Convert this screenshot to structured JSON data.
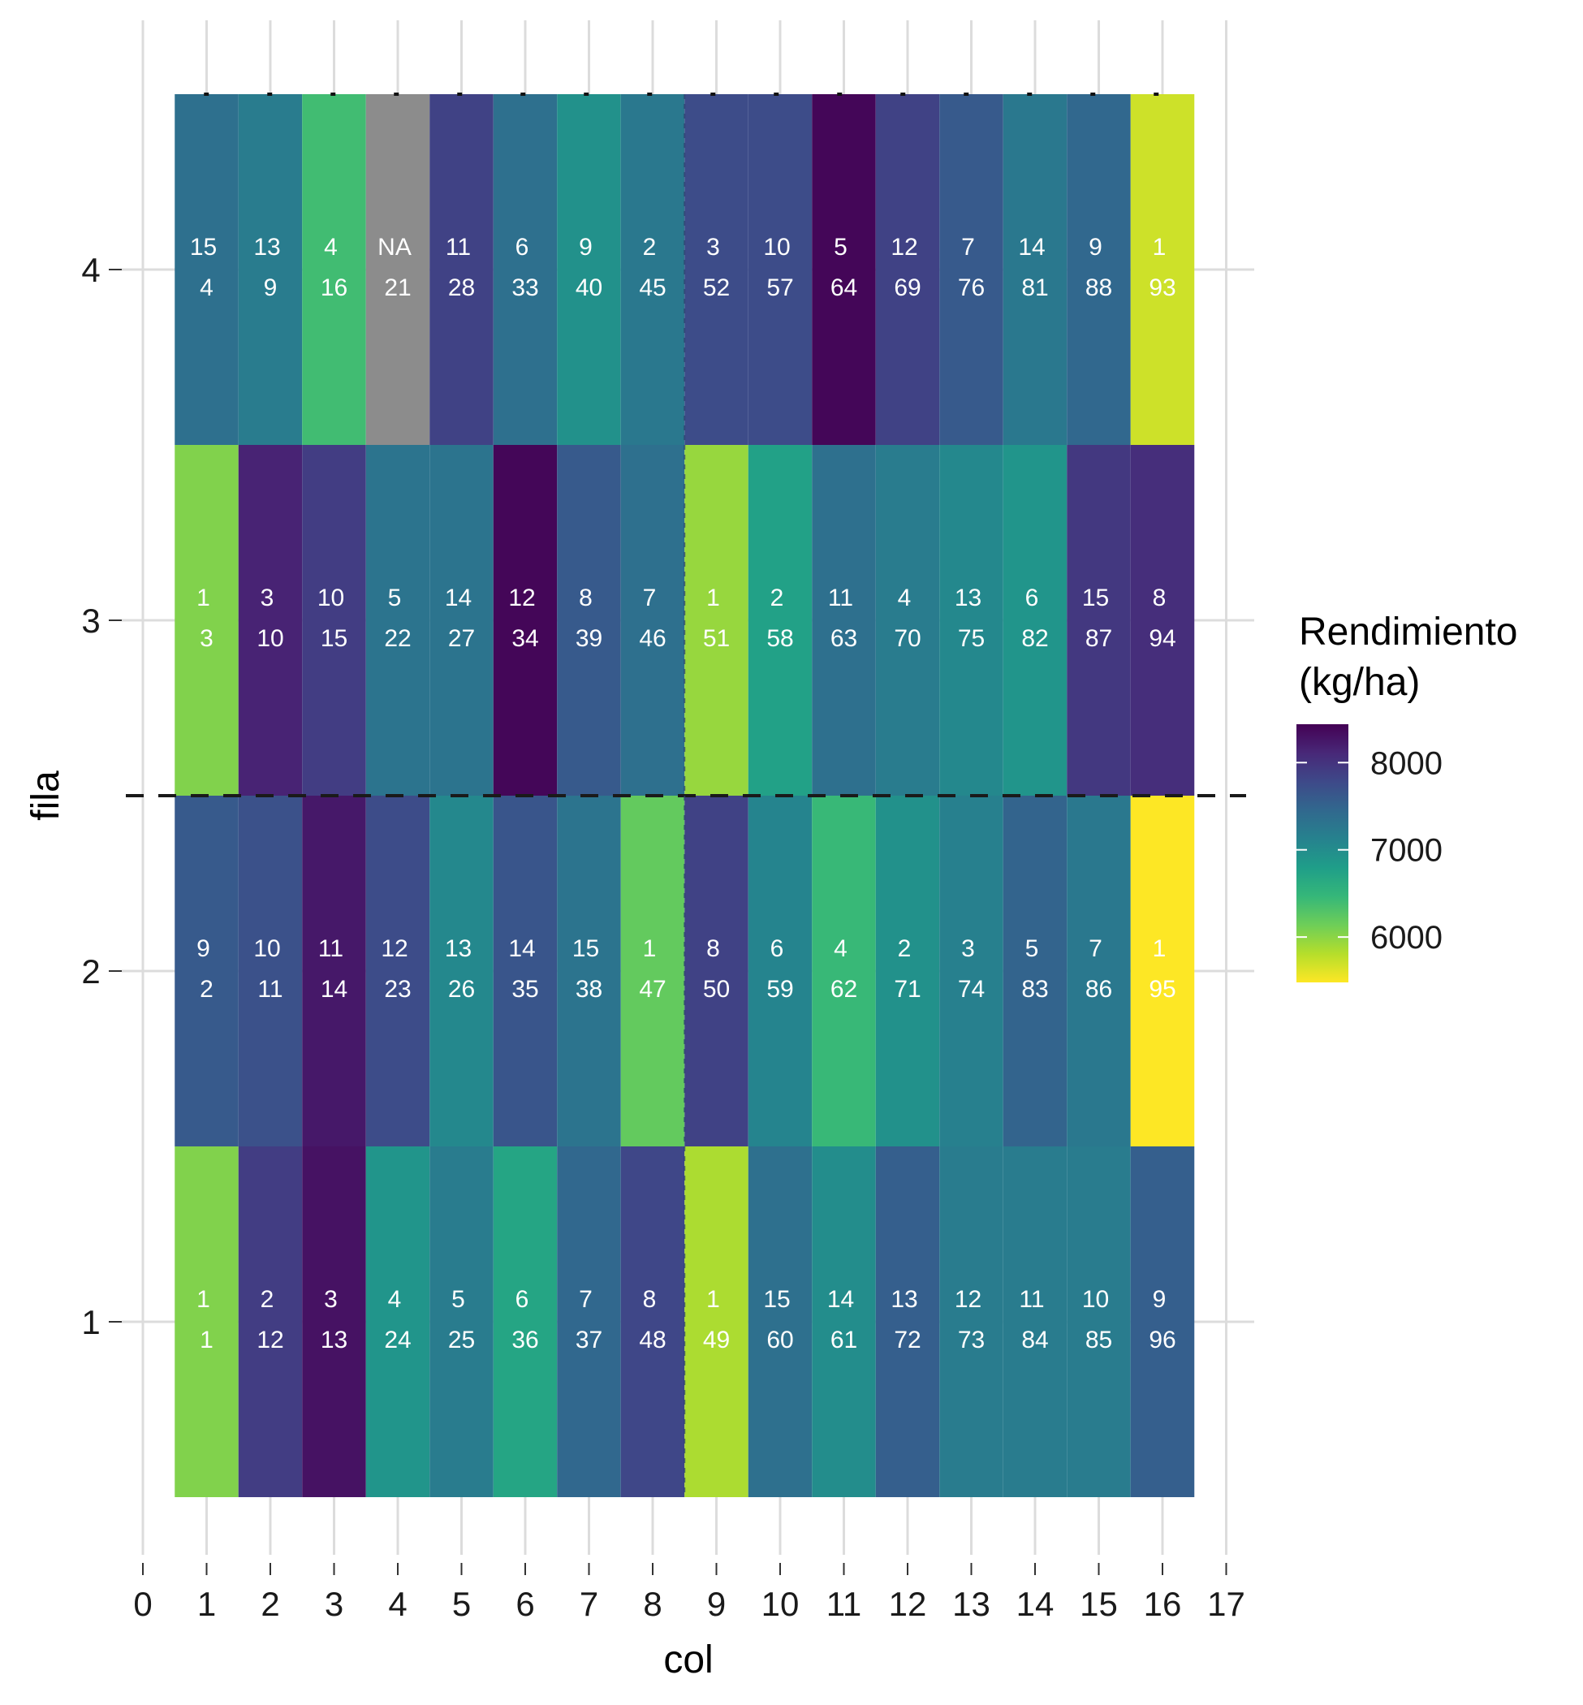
{
  "chart_data": {
    "type": "heatmap",
    "xlabel": "col",
    "ylabel": "fila",
    "x_ticks": [
      "0",
      "1",
      "2",
      "3",
      "4",
      "5",
      "6",
      "7",
      "8",
      "9",
      "10",
      "11",
      "12",
      "13",
      "14",
      "15",
      "16",
      "17"
    ],
    "y_ticks": [
      "1",
      "2",
      "3",
      "4"
    ],
    "xlim": [
      0,
      17
    ],
    "ylim": [
      0.5,
      4.5
    ],
    "grid": true,
    "legend": {
      "title_lines": [
        "Rendimiento",
        "(kg/ha)"
      ],
      "ticks": [
        8000,
        7000,
        6000
      ],
      "range": [
        5480,
        8440
      ],
      "colormap": "viridis (reversed: high = dark purple, low = yellow)",
      "placement": "right"
    },
    "dividers": {
      "horizontal_dashed_at_fila": 2.5,
      "vertical_dashed_at_col": 8.5,
      "top_dashed_at_fila": 4.5
    },
    "na_color": "#8c8c8c",
    "cells": [
      {
        "fila": 1,
        "col": 1,
        "label1": "1",
        "label2": "1",
        "value": 6050
      },
      {
        "fila": 1,
        "col": 2,
        "label1": "2",
        "label2": "12",
        "value": 7900
      },
      {
        "fila": 1,
        "col": 3,
        "label1": "3",
        "label2": "13",
        "value": 8300
      },
      {
        "fila": 1,
        "col": 4,
        "label1": "4",
        "label2": "24",
        "value": 6900
      },
      {
        "fila": 1,
        "col": 5,
        "label1": "5",
        "label2": "25",
        "value": 7200
      },
      {
        "fila": 1,
        "col": 6,
        "label1": "6",
        "label2": "36",
        "value": 6700
      },
      {
        "fila": 1,
        "col": 7,
        "label1": "7",
        "label2": "37",
        "value": 7450
      },
      {
        "fila": 1,
        "col": 8,
        "label1": "8",
        "label2": "48",
        "value": 7800
      },
      {
        "fila": 1,
        "col": 9,
        "label1": "1",
        "label2": "49",
        "value": 5850
      },
      {
        "fila": 1,
        "col": 10,
        "label1": "15",
        "label2": "60",
        "value": 7350
      },
      {
        "fila": 1,
        "col": 11,
        "label1": "14",
        "label2": "61",
        "value": 7000
      },
      {
        "fila": 1,
        "col": 12,
        "label1": "13",
        "label2": "72",
        "value": 7550
      },
      {
        "fila": 1,
        "col": 13,
        "label1": "12",
        "label2": "73",
        "value": 7200
      },
      {
        "fila": 1,
        "col": 14,
        "label1": "11",
        "label2": "84",
        "value": 7200
      },
      {
        "fila": 1,
        "col": 15,
        "label1": "10",
        "label2": "85",
        "value": 7200
      },
      {
        "fila": 1,
        "col": 16,
        "label1": "9",
        "label2": "96",
        "value": 7550
      },
      {
        "fila": 2,
        "col": 1,
        "label1": "9",
        "label2": "2",
        "value": 7600
      },
      {
        "fila": 2,
        "col": 2,
        "label1": "10",
        "label2": "11",
        "value": 7700
      },
      {
        "fila": 2,
        "col": 3,
        "label1": "11",
        "label2": "14",
        "value": 8250
      },
      {
        "fila": 2,
        "col": 4,
        "label1": "12",
        "label2": "23",
        "value": 7750
      },
      {
        "fila": 2,
        "col": 5,
        "label1": "13",
        "label2": "26",
        "value": 7050
      },
      {
        "fila": 2,
        "col": 6,
        "label1": "14",
        "label2": "35",
        "value": 7650
      },
      {
        "fila": 2,
        "col": 7,
        "label1": "15",
        "label2": "38",
        "value": 7300
      },
      {
        "fila": 2,
        "col": 8,
        "label1": "1",
        "label2": "47",
        "value": 6200
      },
      {
        "fila": 2,
        "col": 9,
        "label1": "8",
        "label2": "50",
        "value": 7850
      },
      {
        "fila": 2,
        "col": 10,
        "label1": "6",
        "label2": "59",
        "value": 7100
      },
      {
        "fila": 2,
        "col": 11,
        "label1": "4",
        "label2": "62",
        "value": 6450
      },
      {
        "fila": 2,
        "col": 12,
        "label1": "2",
        "label2": "71",
        "value": 6950
      },
      {
        "fila": 2,
        "col": 13,
        "label1": "3",
        "label2": "74",
        "value": 7150
      },
      {
        "fila": 2,
        "col": 14,
        "label1": "5",
        "label2": "83",
        "value": 7500
      },
      {
        "fila": 2,
        "col": 15,
        "label1": "7",
        "label2": "86",
        "value": 7250
      },
      {
        "fila": 2,
        "col": 16,
        "label1": "1",
        "label2": "95",
        "value": 5480
      },
      {
        "fila": 3,
        "col": 1,
        "label1": "1",
        "label2": "3",
        "value": 6050
      },
      {
        "fila": 3,
        "col": 2,
        "label1": "3",
        "label2": "10",
        "value": 8150
      },
      {
        "fila": 3,
        "col": 3,
        "label1": "10",
        "label2": "15",
        "value": 7900
      },
      {
        "fila": 3,
        "col": 4,
        "label1": "5",
        "label2": "22",
        "value": 7300
      },
      {
        "fila": 3,
        "col": 5,
        "label1": "14",
        "label2": "27",
        "value": 7300
      },
      {
        "fila": 3,
        "col": 6,
        "label1": "12",
        "label2": "34",
        "value": 8400
      },
      {
        "fila": 3,
        "col": 7,
        "label1": "8",
        "label2": "39",
        "value": 7600
      },
      {
        "fila": 3,
        "col": 8,
        "label1": "7",
        "label2": "46",
        "value": 7350
      },
      {
        "fila": 3,
        "col": 9,
        "label1": "1",
        "label2": "51",
        "value": 5950
      },
      {
        "fila": 3,
        "col": 10,
        "label1": "2",
        "label2": "58",
        "value": 6750
      },
      {
        "fila": 3,
        "col": 11,
        "label1": "11",
        "label2": "63",
        "value": 7350
      },
      {
        "fila": 3,
        "col": 12,
        "label1": "4",
        "label2": "70",
        "value": 7200
      },
      {
        "fila": 3,
        "col": 13,
        "label1": "13",
        "label2": "75",
        "value": 7050
      },
      {
        "fila": 3,
        "col": 14,
        "label1": "6",
        "label2": "82",
        "value": 6900
      },
      {
        "fila": 3,
        "col": 15,
        "label1": "15",
        "label2": "87",
        "value": 7950
      },
      {
        "fila": 3,
        "col": 16,
        "label1": "8",
        "label2": "94",
        "value": 8050
      },
      {
        "fila": 4,
        "col": 1,
        "label1": "15",
        "label2": "4",
        "value": 7350
      },
      {
        "fila": 4,
        "col": 2,
        "label1": "13",
        "label2": "9",
        "value": 7200
      },
      {
        "fila": 4,
        "col": 3,
        "label1": "4",
        "label2": "16",
        "value": 6400
      },
      {
        "fila": 4,
        "col": 4,
        "label1": "NA",
        "label2": "21",
        "value": null
      },
      {
        "fila": 4,
        "col": 5,
        "label1": "11",
        "label2": "28",
        "value": 7850
      },
      {
        "fila": 4,
        "col": 6,
        "label1": "6",
        "label2": "33",
        "value": 7350
      },
      {
        "fila": 4,
        "col": 7,
        "label1": "9",
        "label2": "40",
        "value": 6950
      },
      {
        "fila": 4,
        "col": 8,
        "label1": "2",
        "label2": "45",
        "value": 7250
      },
      {
        "fila": 4,
        "col": 9,
        "label1": "3",
        "label2": "52",
        "value": 7750
      },
      {
        "fila": 4,
        "col": 10,
        "label1": "10",
        "label2": "57",
        "value": 7750
      },
      {
        "fila": 4,
        "col": 11,
        "label1": "5",
        "label2": "64",
        "value": 8400
      },
      {
        "fila": 4,
        "col": 12,
        "label1": "12",
        "label2": "69",
        "value": 7850
      },
      {
        "fila": 4,
        "col": 13,
        "label1": "7",
        "label2": "76",
        "value": 7600
      },
      {
        "fila": 4,
        "col": 14,
        "label1": "14",
        "label2": "81",
        "value": 7250
      },
      {
        "fila": 4,
        "col": 15,
        "label1": "9",
        "label2": "88",
        "value": 7450
      },
      {
        "fila": 4,
        "col": 16,
        "label1": "1",
        "label2": "93",
        "value": 5700
      }
    ]
  }
}
